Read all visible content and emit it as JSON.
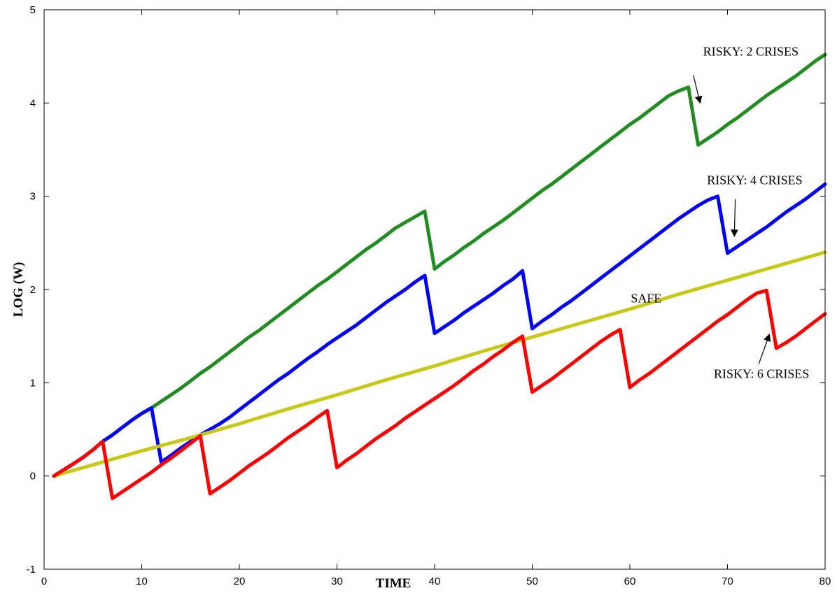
{
  "chart_data": {
    "type": "line",
    "xlabel": "TIME",
    "ylabel": "LOG (W)",
    "xlim": [
      0,
      80
    ],
    "ylim": [
      -1,
      5
    ],
    "xticks": [
      0,
      10,
      20,
      30,
      40,
      50,
      60,
      70,
      80
    ],
    "yticks": [
      -1,
      0,
      1,
      2,
      3,
      4,
      5
    ],
    "grid": false,
    "legend": "none",
    "series": [
      {
        "color": "#228b22",
        "points": [
          [
            1,
            0
          ],
          [
            2,
            0.065
          ],
          [
            3,
            0.13
          ],
          [
            4,
            0.2
          ],
          [
            5,
            0.28
          ],
          [
            6,
            0.37
          ],
          [
            7,
            0.44
          ],
          [
            8,
            0.52
          ],
          [
            9,
            0.6
          ],
          [
            10,
            0.67
          ],
          [
            11,
            0.73
          ],
          [
            12,
            0.8
          ],
          [
            13,
            0.87
          ],
          [
            14,
            0.94
          ],
          [
            15,
            1.02
          ],
          [
            16,
            1.1
          ],
          [
            17,
            1.17
          ],
          [
            18,
            1.25
          ],
          [
            19,
            1.33
          ],
          [
            20,
            1.41
          ],
          [
            21,
            1.49
          ],
          [
            22,
            1.56
          ],
          [
            23,
            1.64
          ],
          [
            24,
            1.72
          ],
          [
            25,
            1.8
          ],
          [
            26,
            1.88
          ],
          [
            27,
            1.96
          ],
          [
            28,
            2.04
          ],
          [
            29,
            2.11
          ],
          [
            30,
            2.19
          ],
          [
            31,
            2.27
          ],
          [
            32,
            2.35
          ],
          [
            33,
            2.43
          ],
          [
            34,
            2.5
          ],
          [
            35,
            2.58
          ],
          [
            36,
            2.66
          ],
          [
            37,
            2.72
          ],
          [
            38,
            2.78
          ],
          [
            39,
            2.84
          ],
          [
            40,
            2.22
          ],
          [
            41,
            2.3
          ],
          [
            42,
            2.37
          ],
          [
            43,
            2.45
          ],
          [
            44,
            2.52
          ],
          [
            45,
            2.6
          ],
          [
            46,
            2.67
          ],
          [
            47,
            2.74
          ],
          [
            48,
            2.82
          ],
          [
            49,
            2.9
          ],
          [
            50,
            2.98
          ],
          [
            51,
            3.06
          ],
          [
            52,
            3.13
          ],
          [
            53,
            3.21
          ],
          [
            54,
            3.29
          ],
          [
            55,
            3.37
          ],
          [
            56,
            3.45
          ],
          [
            57,
            3.53
          ],
          [
            58,
            3.61
          ],
          [
            59,
            3.69
          ],
          [
            60,
            3.77
          ],
          [
            61,
            3.84
          ],
          [
            62,
            3.92
          ],
          [
            63,
            4.0
          ],
          [
            64,
            4.08
          ],
          [
            65,
            4.13
          ],
          [
            66,
            4.17
          ],
          [
            67,
            3.55
          ],
          [
            68,
            3.62
          ],
          [
            69,
            3.69
          ],
          [
            70,
            3.77
          ],
          [
            71,
            3.84
          ],
          [
            72,
            3.92
          ],
          [
            73,
            4.0
          ],
          [
            74,
            4.08
          ],
          [
            75,
            4.15
          ],
          [
            76,
            4.22
          ],
          [
            77,
            4.29
          ],
          [
            78,
            4.37
          ],
          [
            79,
            4.45
          ],
          [
            80,
            4.52
          ]
        ]
      },
      {
        "color": "#0000ff",
        "points": [
          [
            1,
            0
          ],
          [
            2,
            0.065
          ],
          [
            3,
            0.13
          ],
          [
            4,
            0.2
          ],
          [
            5,
            0.28
          ],
          [
            6,
            0.37
          ],
          [
            7,
            0.44
          ],
          [
            8,
            0.52
          ],
          [
            9,
            0.6
          ],
          [
            10,
            0.67
          ],
          [
            11,
            0.73
          ],
          [
            12,
            0.15
          ],
          [
            13,
            0.22
          ],
          [
            14,
            0.3
          ],
          [
            15,
            0.37
          ],
          [
            16,
            0.44
          ],
          [
            17,
            0.5
          ],
          [
            18,
            0.56
          ],
          [
            19,
            0.63
          ],
          [
            20,
            0.71
          ],
          [
            21,
            0.79
          ],
          [
            22,
            0.87
          ],
          [
            23,
            0.95
          ],
          [
            24,
            1.03
          ],
          [
            25,
            1.1
          ],
          [
            26,
            1.18
          ],
          [
            27,
            1.26
          ],
          [
            28,
            1.33
          ],
          [
            29,
            1.41
          ],
          [
            30,
            1.48
          ],
          [
            31,
            1.55
          ],
          [
            32,
            1.62
          ],
          [
            33,
            1.7
          ],
          [
            34,
            1.78
          ],
          [
            35,
            1.86
          ],
          [
            36,
            1.93
          ],
          [
            37,
            2.0
          ],
          [
            38,
            2.08
          ],
          [
            39,
            2.15
          ],
          [
            40,
            1.53
          ],
          [
            41,
            1.6
          ],
          [
            42,
            1.67
          ],
          [
            43,
            1.75
          ],
          [
            44,
            1.82
          ],
          [
            45,
            1.89
          ],
          [
            46,
            1.96
          ],
          [
            47,
            2.04
          ],
          [
            48,
            2.11
          ],
          [
            49,
            2.2
          ],
          [
            50,
            1.58
          ],
          [
            51,
            1.66
          ],
          [
            52,
            1.73
          ],
          [
            53,
            1.81
          ],
          [
            54,
            1.88
          ],
          [
            55,
            1.96
          ],
          [
            56,
            2.04
          ],
          [
            57,
            2.12
          ],
          [
            58,
            2.2
          ],
          [
            59,
            2.28
          ],
          [
            60,
            2.36
          ],
          [
            61,
            2.44
          ],
          [
            62,
            2.52
          ],
          [
            63,
            2.6
          ],
          [
            64,
            2.68
          ],
          [
            65,
            2.76
          ],
          [
            66,
            2.83
          ],
          [
            67,
            2.9
          ],
          [
            68,
            2.96
          ],
          [
            69,
            3.0
          ],
          [
            70,
            2.39
          ],
          [
            71,
            2.46
          ],
          [
            72,
            2.53
          ],
          [
            73,
            2.6
          ],
          [
            74,
            2.67
          ],
          [
            75,
            2.75
          ],
          [
            76,
            2.83
          ],
          [
            77,
            2.9
          ],
          [
            78,
            2.97
          ],
          [
            79,
            3.05
          ],
          [
            80,
            3.13
          ]
        ]
      },
      {
        "color": "#c8c818",
        "points": [
          [
            1,
            0
          ],
          [
            5,
            0.12
          ],
          [
            10,
            0.27
          ],
          [
            15,
            0.41
          ],
          [
            20,
            0.56
          ],
          [
            25,
            0.72
          ],
          [
            30,
            0.87
          ],
          [
            35,
            1.03
          ],
          [
            40,
            1.18
          ],
          [
            45,
            1.34
          ],
          [
            50,
            1.49
          ],
          [
            55,
            1.64
          ],
          [
            60,
            1.79
          ],
          [
            65,
            1.95
          ],
          [
            70,
            2.1
          ],
          [
            75,
            2.25
          ],
          [
            80,
            2.4
          ]
        ]
      },
      {
        "color": "#ff0000",
        "points": [
          [
            1,
            0
          ],
          [
            2,
            0.065
          ],
          [
            3,
            0.13
          ],
          [
            4,
            0.2
          ],
          [
            5,
            0.28
          ],
          [
            6,
            0.37
          ],
          [
            7,
            -0.24
          ],
          [
            8,
            -0.17
          ],
          [
            9,
            -0.1
          ],
          [
            10,
            -0.03
          ],
          [
            11,
            0.04
          ],
          [
            12,
            0.12
          ],
          [
            13,
            0.19
          ],
          [
            14,
            0.27
          ],
          [
            15,
            0.35
          ],
          [
            16,
            0.43
          ],
          [
            17,
            -0.19
          ],
          [
            18,
            -0.12
          ],
          [
            19,
            -0.05
          ],
          [
            20,
            0.03
          ],
          [
            21,
            0.11
          ],
          [
            22,
            0.18
          ],
          [
            23,
            0.25
          ],
          [
            24,
            0.33
          ],
          [
            25,
            0.41
          ],
          [
            26,
            0.48
          ],
          [
            27,
            0.55
          ],
          [
            28,
            0.63
          ],
          [
            29,
            0.7
          ],
          [
            30,
            0.09
          ],
          [
            31,
            0.17
          ],
          [
            32,
            0.24
          ],
          [
            33,
            0.32
          ],
          [
            34,
            0.4
          ],
          [
            35,
            0.47
          ],
          [
            36,
            0.54
          ],
          [
            37,
            0.62
          ],
          [
            38,
            0.69
          ],
          [
            39,
            0.76
          ],
          [
            40,
            0.83
          ],
          [
            41,
            0.9
          ],
          [
            42,
            0.97
          ],
          [
            43,
            1.05
          ],
          [
            44,
            1.13
          ],
          [
            45,
            1.2
          ],
          [
            46,
            1.28
          ],
          [
            47,
            1.35
          ],
          [
            48,
            1.43
          ],
          [
            49,
            1.5
          ],
          [
            50,
            0.9
          ],
          [
            51,
            0.97
          ],
          [
            52,
            1.04
          ],
          [
            53,
            1.12
          ],
          [
            54,
            1.2
          ],
          [
            55,
            1.28
          ],
          [
            56,
            1.36
          ],
          [
            57,
            1.44
          ],
          [
            58,
            1.51
          ],
          [
            59,
            1.57
          ],
          [
            60,
            0.95
          ],
          [
            61,
            1.03
          ],
          [
            62,
            1.1
          ],
          [
            63,
            1.18
          ],
          [
            64,
            1.26
          ],
          [
            65,
            1.34
          ],
          [
            66,
            1.42
          ],
          [
            67,
            1.5
          ],
          [
            68,
            1.58
          ],
          [
            69,
            1.66
          ],
          [
            70,
            1.73
          ],
          [
            71,
            1.81
          ],
          [
            72,
            1.89
          ],
          [
            73,
            1.96
          ],
          [
            74,
            1.99
          ],
          [
            75,
            1.37
          ],
          [
            76,
            1.43
          ],
          [
            77,
            1.5
          ],
          [
            78,
            1.58
          ],
          [
            79,
            1.66
          ],
          [
            80,
            1.74
          ]
        ]
      }
    ],
    "annotations": [
      {
        "text": "RISKY: 2 CRISES",
        "x": 67.5,
        "y": 4.51,
        "arrow_from": [
          66.5,
          4.3
        ],
        "arrow_to": [
          67.2,
          4.0
        ]
      },
      {
        "text": "RISKY: 4 CRISES",
        "x": 67.9,
        "y": 3.13,
        "arrow_from": [
          70.8,
          2.97
        ],
        "arrow_to": [
          70.7,
          2.57
        ]
      },
      {
        "text": "SAFE",
        "x": 60.1,
        "y": 1.86,
        "arrow_from": null,
        "arrow_to": null
      },
      {
        "text": "RISKY: 6 CRISES",
        "x": 68.6,
        "y": 1.05,
        "arrow_from": [
          73.2,
          1.2
        ],
        "arrow_to": [
          74.3,
          1.52
        ]
      }
    ]
  }
}
